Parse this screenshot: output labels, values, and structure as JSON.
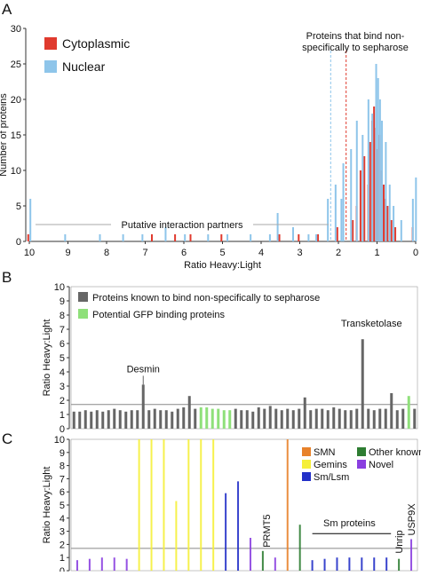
{
  "chart_data": [
    {
      "type": "histogram",
      "panel": "A",
      "ylabel": "Number of proteins",
      "xlabel": "Ratio Heavy:Light",
      "xlim": [
        10,
        0
      ],
      "xticks": [
        10,
        9,
        8,
        7,
        6,
        5,
        4,
        3,
        2,
        1,
        0
      ],
      "ylim": [
        0,
        30
      ],
      "yticks": [
        0,
        5,
        10,
        15,
        20,
        25,
        30
      ],
      "reference_lines": [
        {
          "value": 2.2,
          "color": "#8ec5ea"
        },
        {
          "value": 1.8,
          "color": "#e03a2e"
        }
      ],
      "annotations": {
        "sepharose": [
          "Proteins that bind non-",
          "specifically to sepharose"
        ],
        "partners": "Putative interaction partners"
      },
      "series": [
        {
          "name": "Cytoplasmic",
          "color": "#e03a2e",
          "x": [
            10,
            6.8,
            6.2,
            5.8,
            5.0,
            3.5,
            3.0,
            2.5,
            2.0,
            1.6,
            1.5,
            1.4,
            1.3,
            1.2,
            1.15,
            1.1,
            1.05,
            1.0,
            0.95,
            0.9,
            0.85,
            0.8,
            0.75,
            0.7,
            0.6,
            0.5,
            0.05
          ],
          "values": [
            1,
            1,
            1,
            1,
            1,
            1,
            1,
            1,
            2,
            3,
            5,
            10,
            12,
            8,
            14,
            17,
            19,
            16,
            13,
            15,
            10,
            8,
            6,
            5,
            3,
            2,
            2
          ]
        },
        {
          "name": "Nuclear",
          "color": "#8ec5ea",
          "x": [
            10,
            9.1,
            8.2,
            7.6,
            7.1,
            6.5,
            6.0,
            5.4,
            4.9,
            4.3,
            3.8,
            3.6,
            3.2,
            2.8,
            2.6,
            2.3,
            2.1,
            1.95,
            1.9,
            1.7,
            1.55,
            1.4,
            1.25,
            1.15,
            1.05,
            1.0,
            0.95,
            0.9,
            0.8,
            0.7,
            0.6,
            0.4,
            0.1,
            0.02
          ],
          "values": [
            6,
            1,
            1,
            1,
            1,
            2,
            1,
            1,
            1,
            1,
            1,
            4,
            2,
            1,
            1,
            6,
            8,
            6,
            11,
            13,
            17,
            15,
            20,
            18,
            25,
            23,
            20,
            17,
            14,
            8,
            5,
            3,
            6,
            9
          ]
        }
      ]
    },
    {
      "type": "bar",
      "panel": "B",
      "ylabel": "Ratio Heavy:Light",
      "ylim": [
        0,
        10
      ],
      "yticks": [
        0,
        1,
        2,
        3,
        4,
        5,
        6,
        7,
        8,
        9,
        10
      ],
      "reference_line": 1.7,
      "legend": [
        {
          "name": "Proteins known to bind non-specifically to sepharose",
          "color": "#666666"
        },
        {
          "name": "Potential GFP binding proteins",
          "color": "#8fe07a"
        }
      ],
      "annotations": [
        "Desmin",
        "Transketolase"
      ],
      "values": [
        1.2,
        1.2,
        1.3,
        1.2,
        1.3,
        1.2,
        1.3,
        1.4,
        1.3,
        1.2,
        1.3,
        1.3,
        3.1,
        1.3,
        1.4,
        1.3,
        1.3,
        1.2,
        1.4,
        1.5,
        2.3,
        1.4,
        1.5,
        1.5,
        1.4,
        1.4,
        1.3,
        1.3,
        1.4,
        1.3,
        1.3,
        1.2,
        1.5,
        1.4,
        1.6,
        1.4,
        1.3,
        1.4,
        1.3,
        1.4,
        2.2,
        1.3,
        1.4,
        1.4,
        1.3,
        1.5,
        1.4,
        1.3,
        1.3,
        1.4,
        6.3,
        1.4,
        1.3,
        1.4,
        1.4,
        2.5,
        1.3,
        1.4,
        2.3,
        1.4
      ],
      "colors": [
        "#666666",
        "#666666",
        "#666666",
        "#666666",
        "#666666",
        "#666666",
        "#666666",
        "#666666",
        "#666666",
        "#666666",
        "#666666",
        "#666666",
        "#666666",
        "#666666",
        "#666666",
        "#666666",
        "#666666",
        "#666666",
        "#666666",
        "#666666",
        "#666666",
        "#666666",
        "#8fe07a",
        "#8fe07a",
        "#8fe07a",
        "#8fe07a",
        "#8fe07a",
        "#8fe07a",
        "#666666",
        "#666666",
        "#666666",
        "#666666",
        "#666666",
        "#666666",
        "#666666",
        "#666666",
        "#666666",
        "#666666",
        "#666666",
        "#666666",
        "#666666",
        "#666666",
        "#666666",
        "#666666",
        "#666666",
        "#666666",
        "#666666",
        "#666666",
        "#666666",
        "#666666",
        "#666666",
        "#666666",
        "#666666",
        "#666666",
        "#666666",
        "#666666",
        "#666666",
        "#666666",
        "#8fe07a",
        "#666666"
      ]
    },
    {
      "type": "bar",
      "panel": "C",
      "ylabel": "Ratio Heavy:Light",
      "ylim": [
        0,
        10
      ],
      "yticks": [
        0,
        1,
        2,
        3,
        4,
        5,
        6,
        7,
        8,
        9,
        10
      ],
      "reference_line": 1.7,
      "legend": [
        {
          "name": "SMN",
          "color": "#e8822a"
        },
        {
          "name": "Gemins",
          "color": "#f5ef3a"
        },
        {
          "name": "Sm/Lsm",
          "color": "#2330c8"
        },
        {
          "name": "Other known",
          "color": "#2e7d32"
        },
        {
          "name": "Novel",
          "color": "#8a3fe0"
        }
      ],
      "annotations": [
        "PRMT5",
        "Sm proteins",
        "Unrip",
        "USP9X"
      ],
      "values": [
        0.8,
        0.9,
        1.0,
        1.0,
        0.9,
        10,
        10,
        10,
        5.3,
        10,
        10,
        10,
        5.9,
        6.8,
        2.5,
        1.5,
        1.0,
        10,
        3.5,
        0.8,
        0.9,
        1.0,
        1.0,
        1.0,
        1.0,
        1.0,
        0.9,
        2.4
      ],
      "colors": [
        "#8a3fe0",
        "#8a3fe0",
        "#8a3fe0",
        "#8a3fe0",
        "#8a3fe0",
        "#f5ef3a",
        "#f5ef3a",
        "#f5ef3a",
        "#f5ef3a",
        "#f5ef3a",
        "#f5ef3a",
        "#f5ef3a",
        "#2330c8",
        "#2330c8",
        "#8a3fe0",
        "#2e7d32",
        "#8a3fe0",
        "#e8822a",
        "#2e7d32",
        "#2330c8",
        "#2330c8",
        "#2330c8",
        "#2330c8",
        "#2330c8",
        "#2330c8",
        "#2330c8",
        "#2e7d32",
        "#8a3fe0"
      ]
    }
  ]
}
